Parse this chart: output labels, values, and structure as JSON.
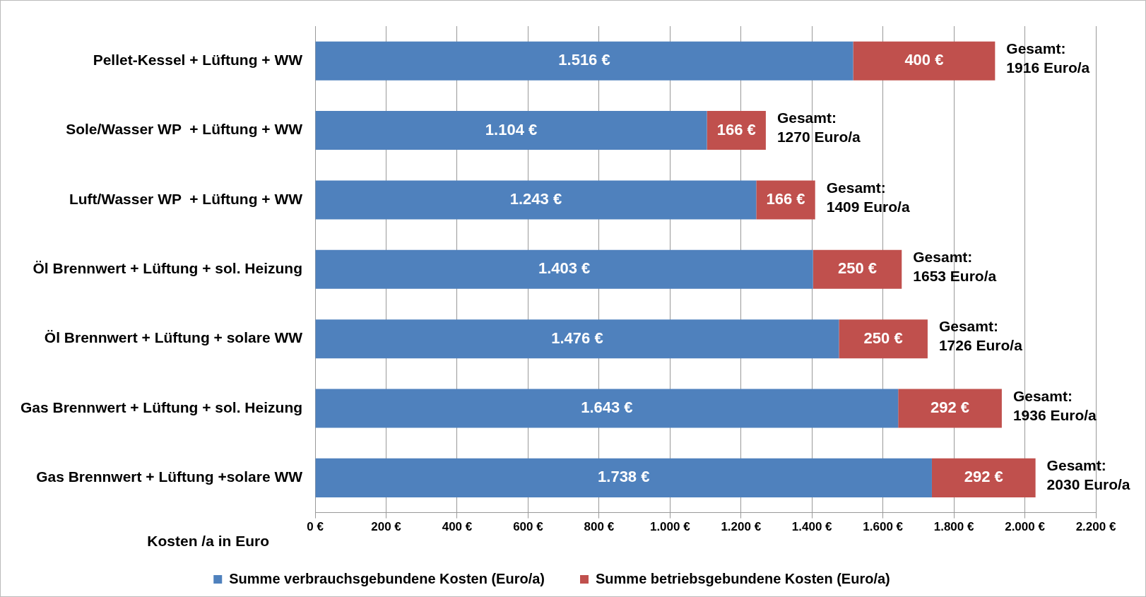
{
  "chart_data": {
    "type": "bar",
    "orientation": "horizontal",
    "stacked": true,
    "categories": [
      "Pellet-Kessel + Lüftung + WW",
      "Sole/Wasser WP  + Lüftung + WW",
      "Luft/Wasser WP  + Lüftung + WW",
      "Öl Brennwert + Lüftung + sol. Heizung",
      "Öl Brennwert + Lüftung + solare WW",
      "Gas Brennwert + Lüftung + sol. Heizung",
      "Gas Brennwert + Lüftung +solare WW"
    ],
    "series": [
      {
        "name": "Summe verbrauchsgebundene Kosten (Euro/a)",
        "color": "#4f81bd",
        "values": [
          1516,
          1104,
          1243,
          1403,
          1476,
          1643,
          1738
        ],
        "value_labels": [
          "1.516 €",
          "1.104 €",
          "1.243 €",
          "1.403 €",
          "1.476 €",
          "1.643 €",
          "1.738 €"
        ]
      },
      {
        "name": "Summe betriebsgebundene Kosten (Euro/a)",
        "color": "#c0504d",
        "values": [
          400,
          166,
          166,
          250,
          250,
          292,
          292
        ],
        "value_labels": [
          "400 €",
          "166 €",
          "166 €",
          "250 €",
          "250 €",
          "292 €",
          "292 €"
        ]
      }
    ],
    "totals": [
      "Gesamt:\n1916 Euro/a",
      "Gesamt:\n1270 Euro/a",
      "Gesamt:\n1409 Euro/a",
      "Gesamt:\n1653 Euro/a",
      "Gesamt:\n1726 Euro/a",
      "Gesamt:\n1936 Euro/a",
      "Gesamt:\n2030 Euro/a"
    ],
    "xlim": [
      0,
      2200
    ],
    "xticks": [
      {
        "value": 0,
        "label": "0 €"
      },
      {
        "value": 200,
        "label": "200 €"
      },
      {
        "value": 400,
        "label": "400 €"
      },
      {
        "value": 600,
        "label": "600 €"
      },
      {
        "value": 800,
        "label": "800 €"
      },
      {
        "value": 1000,
        "label": "1.000 €"
      },
      {
        "value": 1200,
        "label": "1.200 €"
      },
      {
        "value": 1400,
        "label": "1.400 €"
      },
      {
        "value": 1600,
        "label": "1.600 €"
      },
      {
        "value": 1800,
        "label": "1.800 €"
      },
      {
        "value": 2000,
        "label": "2.000 €"
      },
      {
        "value": 2200,
        "label": "2.200 €"
      }
    ],
    "xlabel": "Kosten /a in Euro",
    "grid": "x",
    "legend": "bottom"
  }
}
